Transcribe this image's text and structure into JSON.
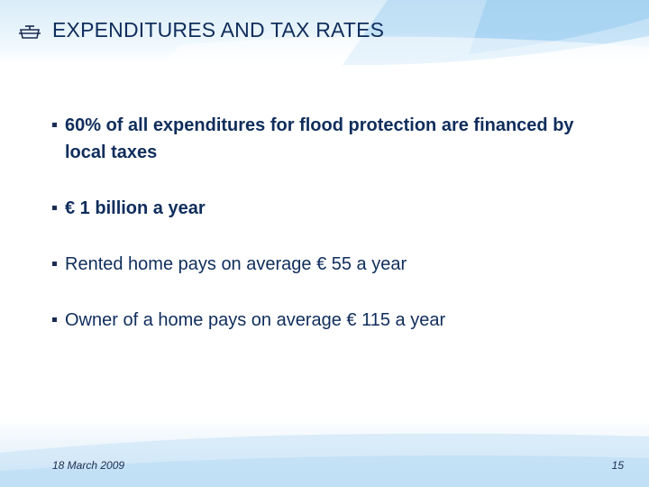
{
  "slide": {
    "title": "EXPENDITURES AND TAX RATES",
    "title_icon": "banner-icon",
    "accent_color": "#9fd0f0"
  },
  "bullets": [
    {
      "text": "60% of all expenditures for flood protection are financed by local taxes"
    },
    {
      "text": "€ 1 billion a year"
    },
    {
      "text": "Rented home pays on average € 55 a year"
    },
    {
      "text": "Owner of a home pays on average € 115 a year"
    }
  ],
  "footer": {
    "date": "18 March 2009",
    "page_number": "15"
  }
}
